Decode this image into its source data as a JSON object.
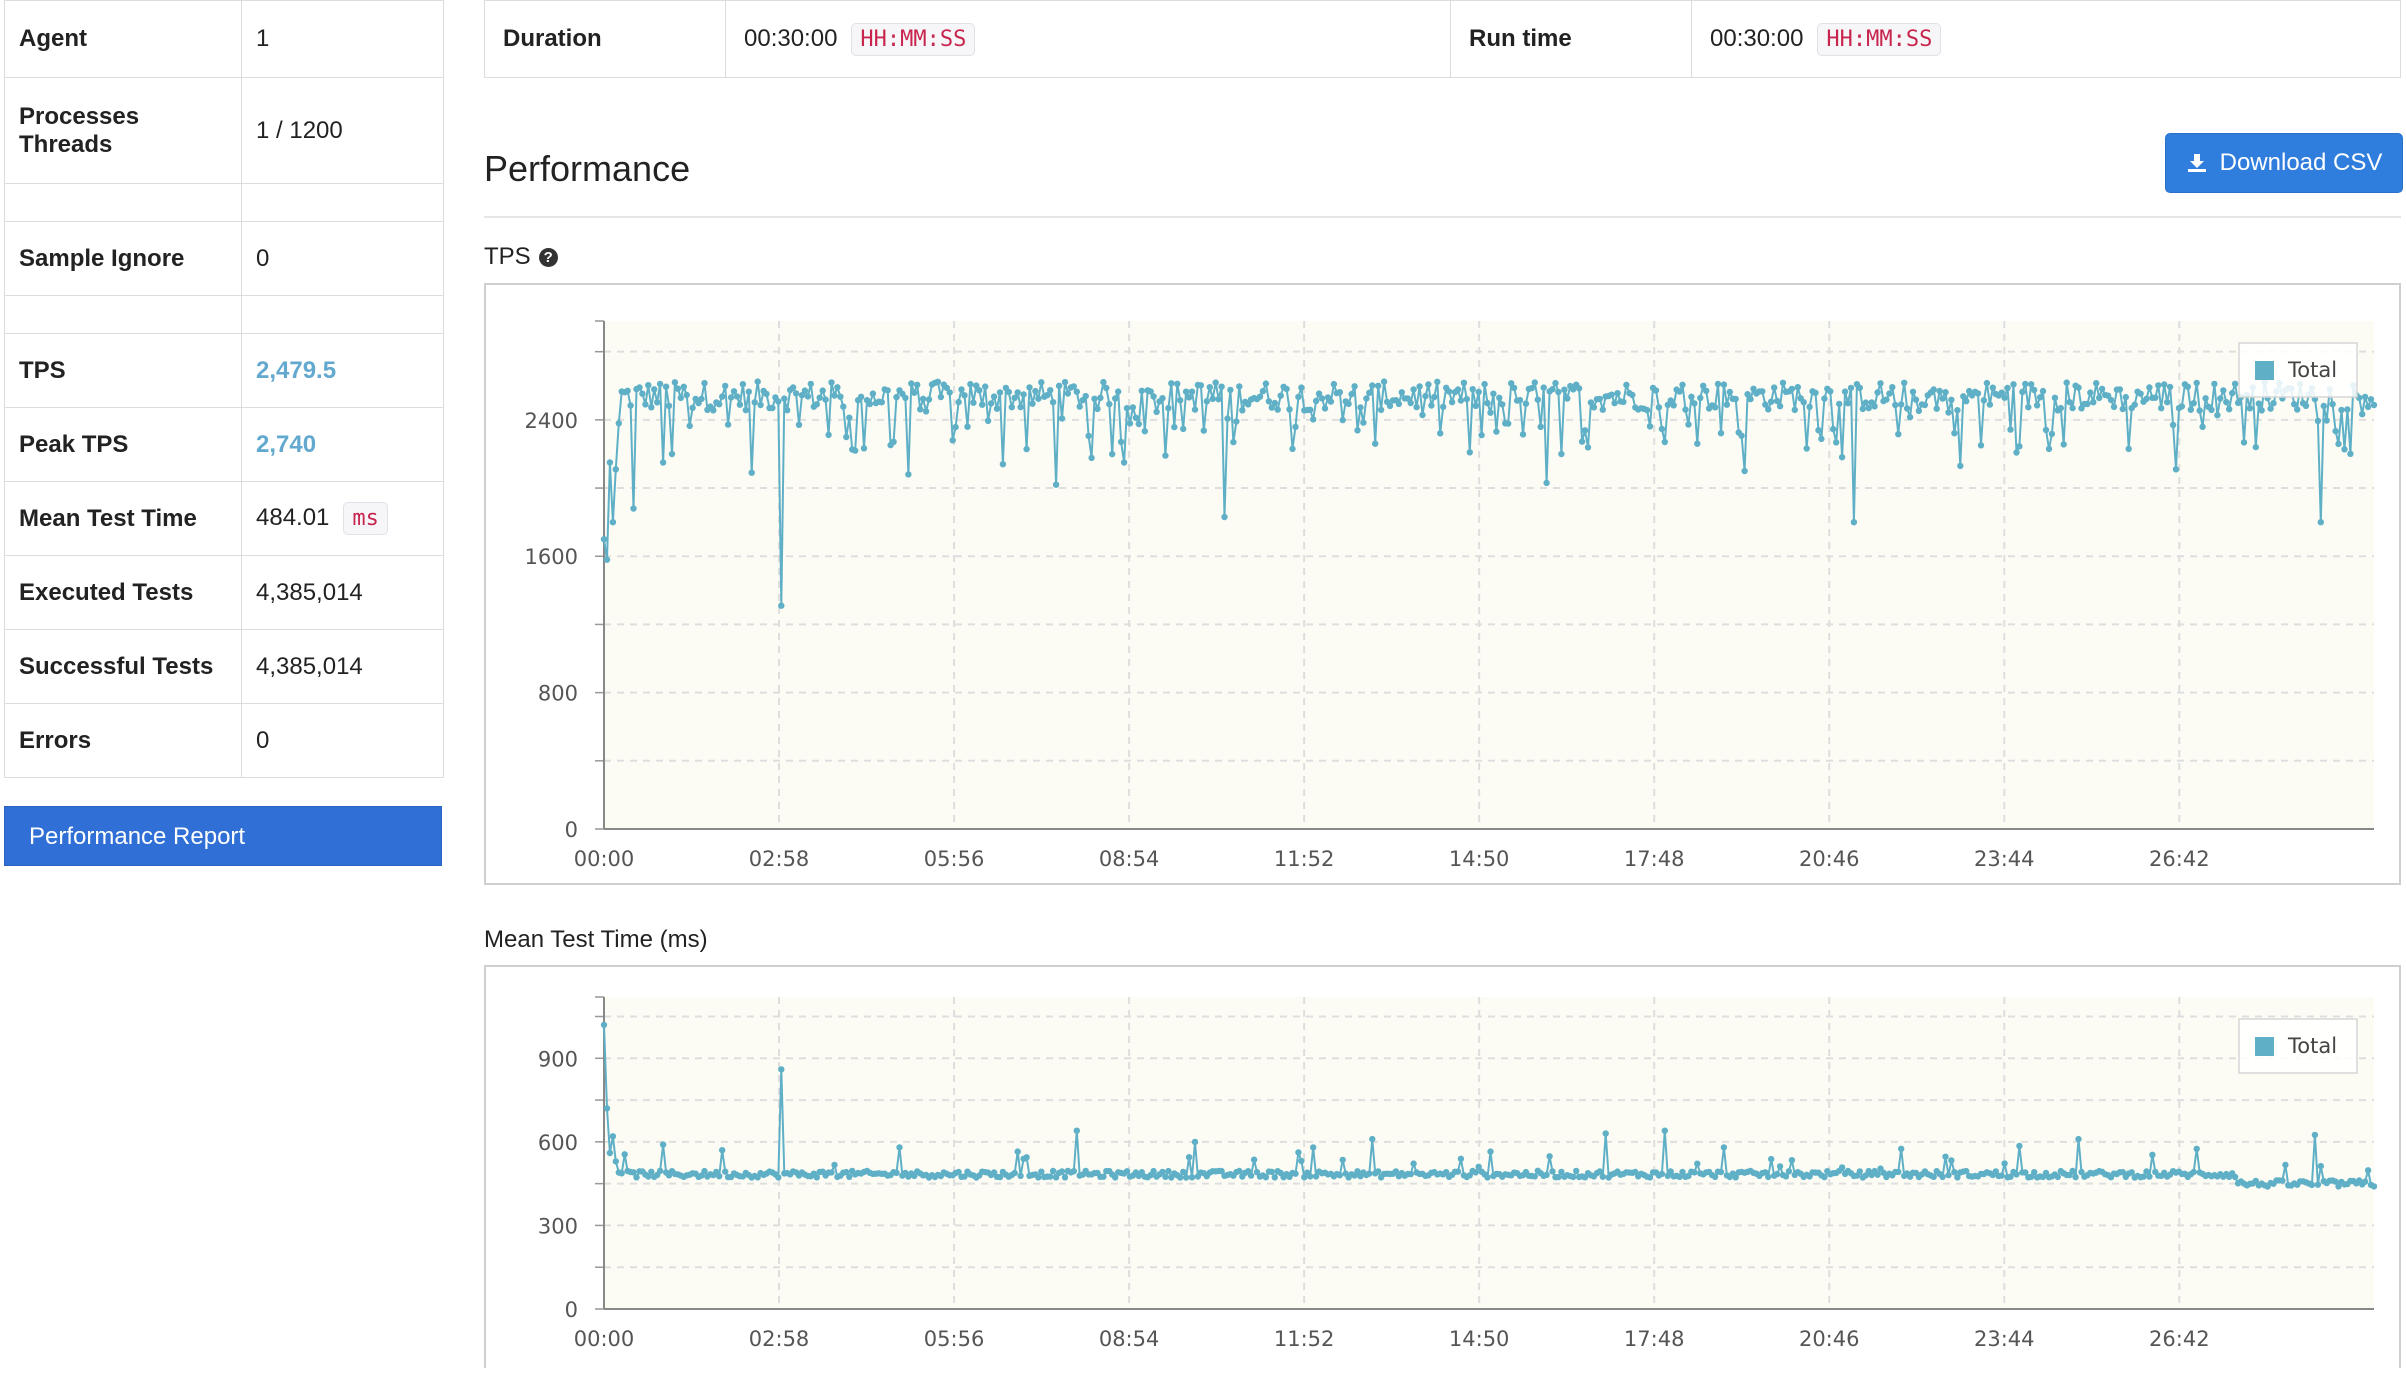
{
  "stats": [
    {
      "label": "Agent",
      "value": "1"
    },
    {
      "label": "Processes\nThreads",
      "value": "1 / 1200"
    },
    {
      "label": "",
      "value": ""
    },
    {
      "label": "Sample Ignore",
      "value": "0"
    },
    {
      "label": "",
      "value": ""
    },
    {
      "label": "TPS",
      "value": "2,479.5",
      "highlight": true
    },
    {
      "label": "Peak TPS",
      "value": "2,740",
      "highlight": true
    },
    {
      "label": "Mean Test Time",
      "value": "484.01",
      "unit": "ms"
    },
    {
      "label": "Executed Tests",
      "value": "4,385,014"
    },
    {
      "label": "Successful Tests",
      "value": "4,385,014"
    },
    {
      "label": "Errors",
      "value": "0"
    }
  ],
  "perf_report_label": "Performance Report",
  "run_info": {
    "duration_label": "Duration",
    "duration_value": "00:30:00",
    "duration_unit": "HH:MM:SS",
    "runtime_label": "Run time",
    "runtime_value": "00:30:00",
    "runtime_unit": "HH:MM:SS"
  },
  "performance_title": "Performance",
  "download_label": "Download CSV",
  "colors": {
    "series": "#5fb0c6",
    "plot_bg": "#fcfcf5",
    "primary_button": "#2f7ddd",
    "report_button": "#2f6fd6",
    "highlight": "#62a8cf"
  },
  "icons": {
    "download": "download-icon",
    "help": "question-circle-icon"
  },
  "chart_data": [
    {
      "type": "line",
      "title": "TPS",
      "x_ticks": [
        "00:00",
        "02:58",
        "05:56",
        "08:54",
        "11:52",
        "14:50",
        "17:48",
        "20:46",
        "23:44",
        "26:42"
      ],
      "xlim": [
        "00:00",
        "30:00"
      ],
      "y_ticks": [
        0,
        800,
        1600,
        2400
      ],
      "ylim": [
        0,
        2980
      ],
      "grid": true,
      "legend_position": "top-right",
      "series": [
        {
          "name": "Total",
          "baseline": 2480,
          "start": [
            1700,
            1580,
            2150,
            1800,
            2110,
            2380
          ],
          "dips": [
            {
              "x": "00:30",
              "y": 1880
            },
            {
              "x": "01:00",
              "y": 2150
            },
            {
              "x": "01:10",
              "y": 2200
            },
            {
              "x": "02:30",
              "y": 2090
            },
            {
              "x": "03:00",
              "y": 1310
            },
            {
              "x": "04:15",
              "y": 2220
            },
            {
              "x": "05:10",
              "y": 2080
            },
            {
              "x": "05:56",
              "y": 2280
            },
            {
              "x": "06:45",
              "y": 2140
            },
            {
              "x": "07:40",
              "y": 2020
            },
            {
              "x": "08:50",
              "y": 2150
            },
            {
              "x": "10:30",
              "y": 1830
            },
            {
              "x": "11:40",
              "y": 2230
            },
            {
              "x": "13:05",
              "y": 2260
            },
            {
              "x": "14:40",
              "y": 2210
            },
            {
              "x": "16:00",
              "y": 2030
            },
            {
              "x": "18:00",
              "y": 2270
            },
            {
              "x": "19:20",
              "y": 2100
            },
            {
              "x": "21:10",
              "y": 1800
            },
            {
              "x": "23:00",
              "y": 2130
            },
            {
              "x": "24:30",
              "y": 2230
            },
            {
              "x": "25:50",
              "y": 2230
            },
            {
              "x": "26:40",
              "y": 2110
            },
            {
              "x": "28:00",
              "y": 2240
            },
            {
              "x": "29:05",
              "y": 1800
            }
          ]
        }
      ]
    },
    {
      "type": "line",
      "title": "Mean Test Time (ms)",
      "x_ticks": [
        "00:00",
        "02:58",
        "05:56",
        "08:54",
        "11:52",
        "14:50",
        "17:48",
        "20:46",
        "23:44",
        "26:42"
      ],
      "xlim": [
        "00:00",
        "30:00"
      ],
      "y_ticks": [
        0,
        300,
        600,
        900
      ],
      "ylim": [
        0,
        1120
      ],
      "grid": true,
      "legend_position": "top-right",
      "series": [
        {
          "name": "Total",
          "baseline": 484,
          "start": [
            1020,
            720,
            560,
            620,
            530,
            490
          ],
          "spikes": [
            {
              "x": "01:00",
              "y": 590
            },
            {
              "x": "02:00",
              "y": 570
            },
            {
              "x": "03:00",
              "y": 860
            },
            {
              "x": "05:00",
              "y": 580
            },
            {
              "x": "07:00",
              "y": 565
            },
            {
              "x": "08:00",
              "y": 640
            },
            {
              "x": "10:00",
              "y": 600
            },
            {
              "x": "12:00",
              "y": 580
            },
            {
              "x": "13:00",
              "y": 610
            },
            {
              "x": "15:00",
              "y": 565
            },
            {
              "x": "17:00",
              "y": 630
            },
            {
              "x": "18:00",
              "y": 640
            },
            {
              "x": "19:00",
              "y": 580
            },
            {
              "x": "22:00",
              "y": 575
            },
            {
              "x": "24:00",
              "y": 585
            },
            {
              "x": "25:00",
              "y": 610
            },
            {
              "x": "27:00",
              "y": 575
            },
            {
              "x": "29:00",
              "y": 625
            }
          ],
          "tail": 450
        }
      ]
    }
  ]
}
